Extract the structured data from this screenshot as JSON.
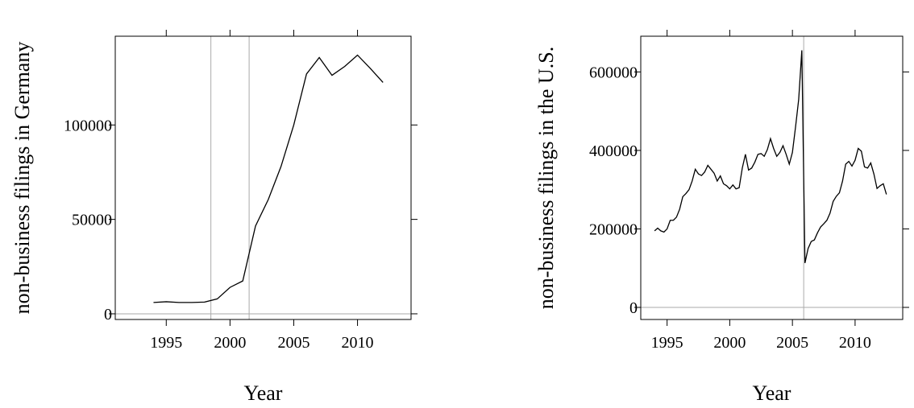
{
  "chart_data": [
    {
      "type": "line",
      "xlabel": "Year",
      "ylabel": "non-business filings in Germany",
      "color": "#000000",
      "x": [
        1994,
        1995,
        1996,
        1997,
        1998,
        1999,
        2000,
        2001,
        2002,
        2003,
        2004,
        2005,
        2006,
        2007,
        2008,
        2009,
        2010,
        2011,
        2012
      ],
      "values": [
        6000,
        6400,
        6000,
        6000,
        6200,
        7900,
        14000,
        17400,
        46500,
        60500,
        78000,
        100000,
        127000,
        135700,
        126300,
        131000,
        137000,
        130000,
        122500
      ],
      "xlim": [
        1991,
        2014.2
      ],
      "ylim": [
        -3000,
        147000
      ],
      "xticks": [
        1995,
        2000,
        2005,
        2010
      ],
      "yticks": [
        0,
        50000,
        100000
      ],
      "vlines": [
        1998.5,
        2001.5
      ],
      "hlines": [
        0
      ],
      "reference_color": "#aaaaaa"
    },
    {
      "type": "line",
      "xlabel": "Year",
      "ylabel": "non-business filings in the U.S.",
      "color": "#000000",
      "x": [
        1994,
        1994.25,
        1994.5,
        1994.75,
        1995,
        1995.25,
        1995.5,
        1995.75,
        1996,
        1996.25,
        1996.5,
        1996.75,
        1997,
        1997.25,
        1997.5,
        1997.75,
        1998,
        1998.25,
        1998.5,
        1998.75,
        1999,
        1999.25,
        1999.5,
        1999.75,
        2000,
        2000.25,
        2000.5,
        2000.75,
        2001,
        2001.25,
        2001.5,
        2001.75,
        2002,
        2002.25,
        2002.5,
        2002.75,
        2003,
        2003.25,
        2003.5,
        2003.75,
        2004,
        2004.25,
        2004.5,
        2004.75,
        2005,
        2005.25,
        2005.5,
        2005.75,
        2006,
        2006.25,
        2006.5,
        2006.75,
        2007,
        2007.25,
        2007.5,
        2007.75,
        2008,
        2008.25,
        2008.5,
        2008.75,
        2009,
        2009.25,
        2009.5,
        2009.75,
        2010,
        2010.25,
        2010.5,
        2010.75,
        2011,
        2011.25,
        2011.5,
        2011.75,
        2012,
        2012.25,
        2012.5
      ],
      "values": [
        195000,
        202000,
        195000,
        192000,
        200000,
        222000,
        222000,
        230000,
        250000,
        282000,
        290000,
        300000,
        322000,
        352000,
        340000,
        336000,
        345000,
        362000,
        352000,
        342000,
        322000,
        335000,
        315000,
        310000,
        302000,
        312000,
        302000,
        305000,
        355000,
        390000,
        350000,
        355000,
        370000,
        390000,
        392000,
        385000,
        402000,
        430000,
        405000,
        385000,
        395000,
        412000,
        390000,
        365000,
        395000,
        460000,
        530000,
        655000,
        113000,
        150000,
        168000,
        172000,
        190000,
        205000,
        213000,
        222000,
        240000,
        270000,
        283000,
        292000,
        322000,
        365000,
        372000,
        360000,
        375000,
        405000,
        398000,
        358000,
        355000,
        368000,
        340000,
        303000,
        310000,
        315000,
        288000
      ],
      "xlim": [
        1992.9,
        2013.8
      ],
      "ylim": [
        -30800,
        691000
      ],
      "xticks": [
        1995,
        2000,
        2005,
        2010
      ],
      "yticks": [
        0,
        200000,
        400000,
        600000
      ],
      "vlines": [
        2005.9
      ],
      "hlines": [
        0
      ],
      "reference_color": "#aaaaaa"
    }
  ]
}
